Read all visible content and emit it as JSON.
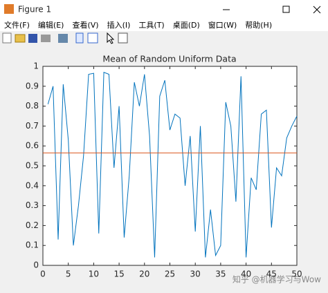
{
  "window": {
    "title": "Figure 1",
    "menu": [
      "文件(F)",
      "编辑(E)",
      "查看(V)",
      "插入(I)",
      "工具(T)",
      "桌面(D)",
      "窗口(W)",
      "帮助(H)"
    ]
  },
  "chart_data": {
    "type": "line",
    "title": "Mean of Random Uniform Data",
    "x": [
      1,
      2,
      3,
      4,
      5,
      6,
      7,
      8,
      9,
      10,
      11,
      12,
      13,
      14,
      15,
      16,
      17,
      18,
      19,
      20,
      21,
      22,
      23,
      24,
      25,
      26,
      27,
      28,
      29,
      30,
      31,
      32,
      33,
      34,
      35,
      36,
      37,
      38,
      39,
      40,
      41,
      42,
      43,
      44,
      45,
      46,
      47,
      48,
      49,
      50
    ],
    "series": [
      {
        "color": "#0072bd",
        "values": [
          0.81,
          0.9,
          0.13,
          0.91,
          0.63,
          0.1,
          0.3,
          0.55,
          0.96,
          0.965,
          0.16,
          0.97,
          0.96,
          0.49,
          0.8,
          0.14,
          0.45,
          0.92,
          0.8,
          0.96,
          0.65,
          0.04,
          0.85,
          0.93,
          0.68,
          0.76,
          0.74,
          0.4,
          0.65,
          0.17,
          0.7,
          0.04,
          0.28,
          0.05,
          0.1,
          0.82,
          0.7,
          0.32,
          0.95,
          0.04,
          0.44,
          0.38,
          0.76,
          0.78,
          0.19,
          0.49,
          0.45,
          0.64,
          0.7,
          0.75
        ]
      }
    ],
    "reference_line": {
      "value": 0.565,
      "color": "#d95319"
    },
    "xlim": [
      0,
      50
    ],
    "xticks": [
      0,
      5,
      10,
      15,
      20,
      25,
      30,
      35,
      40,
      45,
      50
    ],
    "ylim": [
      0,
      1
    ],
    "yticks": [
      0,
      0.1,
      0.2,
      0.3,
      0.4,
      0.5,
      0.6,
      0.7,
      0.8,
      0.9,
      1
    ]
  },
  "watermark": "知乎 @机器学习与Wow"
}
